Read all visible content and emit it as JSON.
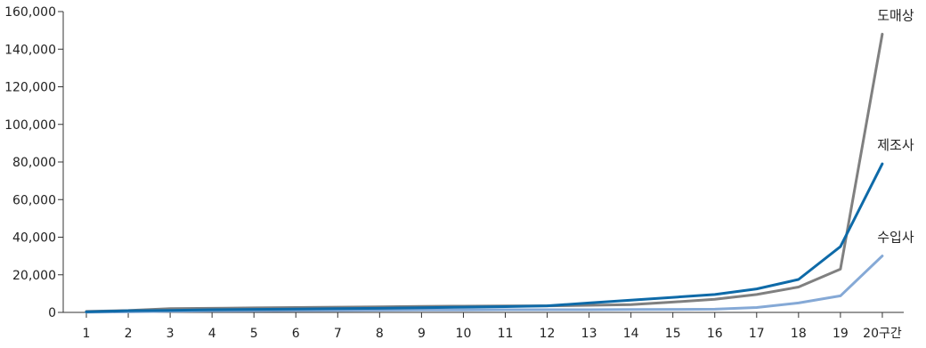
{
  "chart_data": {
    "type": "line",
    "categories": [
      "1",
      "2",
      "3",
      "4",
      "5",
      "6",
      "7",
      "8",
      "9",
      "10",
      "11",
      "12",
      "13",
      "14",
      "15",
      "16",
      "17",
      "18",
      "19",
      "20구간"
    ],
    "y_ticks": [
      0,
      20000,
      40000,
      60000,
      80000,
      100000,
      120000,
      140000,
      160000
    ],
    "y_tick_labels": [
      "0",
      "20,000",
      "40,000",
      "60,000",
      "80,000",
      "100,000",
      "120,000",
      "140,000",
      "160,000"
    ],
    "ylim": [
      0,
      160000
    ],
    "grid": false,
    "legend": "none (series labels placed at right end of lines)",
    "series": [
      {
        "name": "도매상",
        "color": "#808080",
        "values": [
          500,
          1000,
          2000,
          2200,
          2400,
          2600,
          2800,
          3000,
          3200,
          3300,
          3400,
          3500,
          3800,
          4100,
          5500,
          7000,
          9500,
          13500,
          23000,
          148000
        ]
      },
      {
        "name": "제조사",
        "color": "#0e6aa8",
        "values": [
          300,
          900,
          1100,
          1400,
          1600,
          1800,
          2000,
          2200,
          2500,
          2800,
          3100,
          3500,
          5000,
          6500,
          8000,
          9500,
          12500,
          17500,
          35000,
          79000
        ]
      },
      {
        "name": "수입사",
        "color": "#85a9d6",
        "values": [
          100,
          300,
          600,
          800,
          900,
          1000,
          1100,
          1200,
          1300,
          1300,
          1400,
          1400,
          1400,
          1500,
          1600,
          1700,
          2600,
          5000,
          8800,
          30000
        ]
      }
    ]
  }
}
